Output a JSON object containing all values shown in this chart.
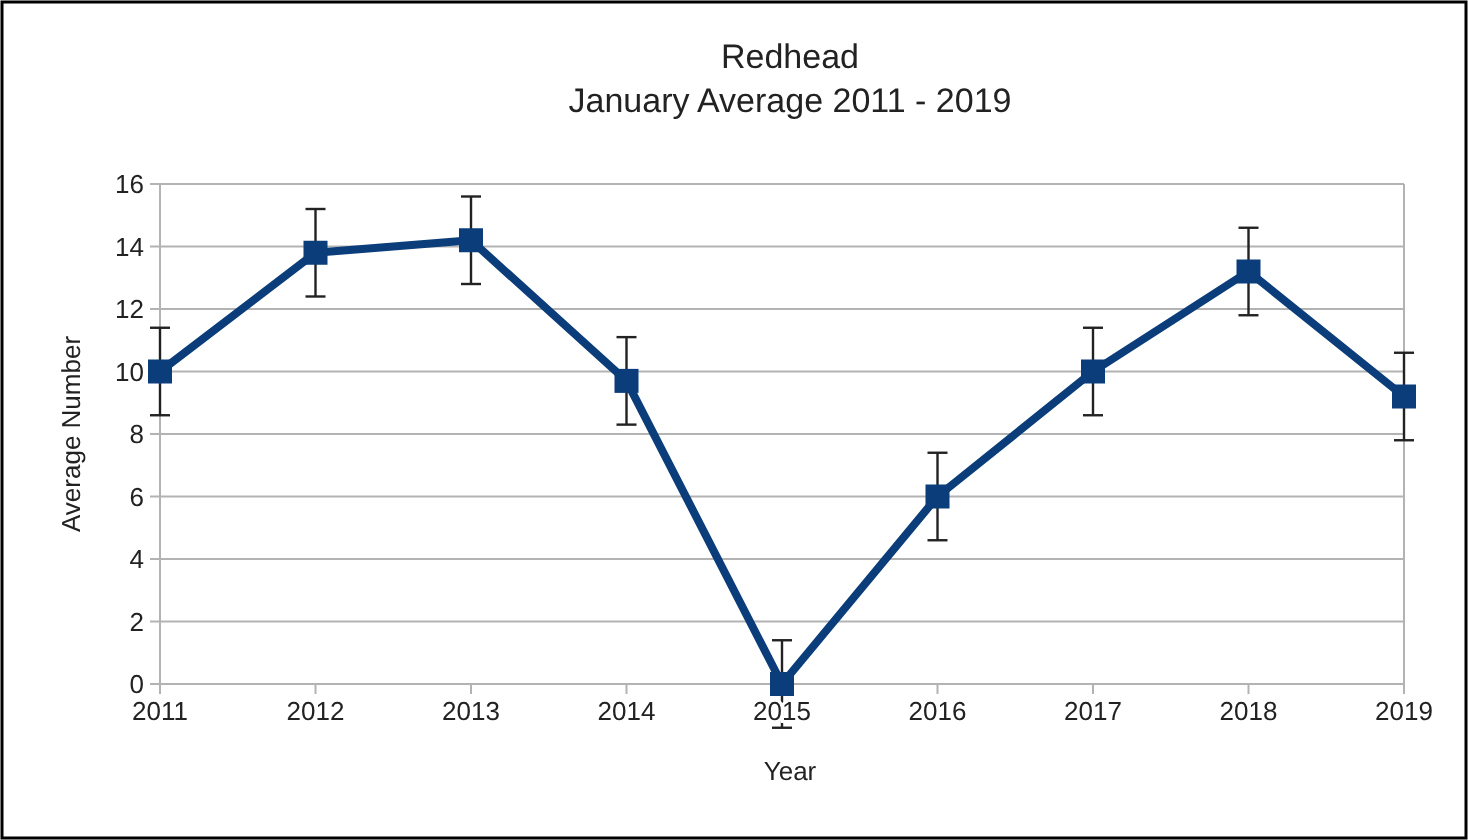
{
  "chart_data": {
    "type": "line",
    "title": "Redhead",
    "subtitle": "January Average 2011 - 2019",
    "xlabel": "Year",
    "ylabel": "Average Number",
    "categories": [
      "2011",
      "2012",
      "2013",
      "2014",
      "2015",
      "2016",
      "2017",
      "2018",
      "2019"
    ],
    "series": [
      {
        "color": "#0a3d7a",
        "values": [
          10,
          13.8,
          14.2,
          9.7,
          0,
          6.0,
          10.0,
          13.2,
          9.2
        ],
        "errors": [
          1.4,
          1.4,
          1.4,
          1.4,
          1.4,
          1.4,
          1.4,
          1.4,
          1.4
        ]
      }
    ],
    "ylim": [
      0,
      16
    ],
    "yticks": [
      0,
      2,
      4,
      6,
      8,
      10,
      12,
      14,
      16
    ],
    "grid": "y",
    "marker": "square",
    "line_style": "solid"
  }
}
